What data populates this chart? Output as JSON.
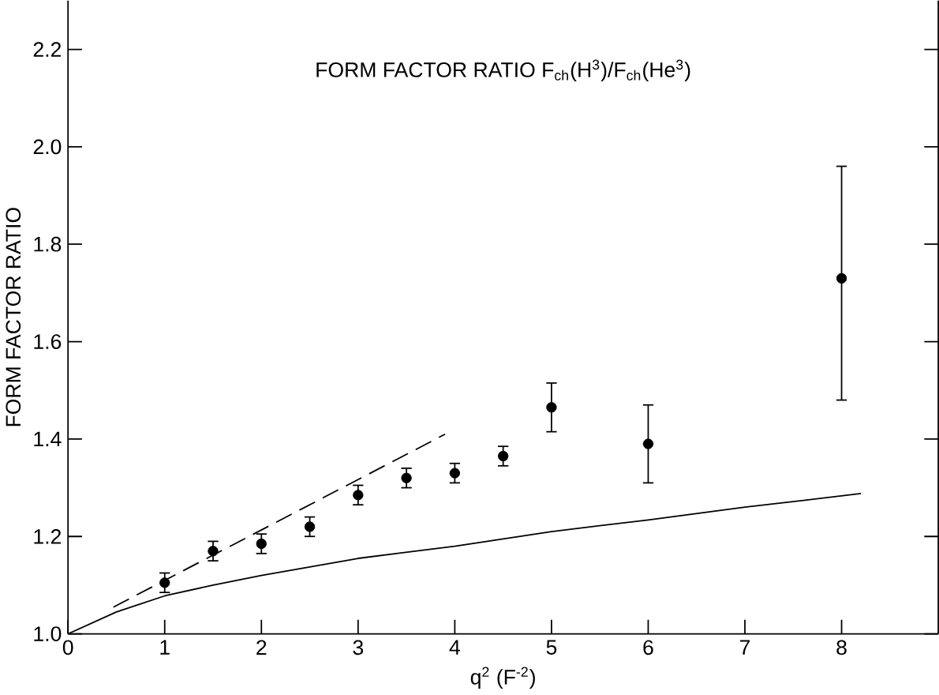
{
  "chart_data": {
    "type": "scatter",
    "title": "FORM FACTOR RATIO   F$_{ch}$(H$^{3}$)/F$_{ch}$(He$^{3}$)",
    "xlabel": "q$^{2}$ (F$^{-2}$)",
    "ylabel": "FORM FACTOR RATIO",
    "xlim": [
      0,
      9
    ],
    "ylim": [
      1.0,
      2.3
    ],
    "xticks": [
      0,
      1,
      2,
      3,
      4,
      5,
      6,
      7,
      8
    ],
    "yticks": [
      {
        "value": 1.0,
        "label": "1.0"
      },
      {
        "value": 1.2,
        "label": "1.2"
      },
      {
        "value": 1.4,
        "label": "1.4"
      },
      {
        "value": 1.6,
        "label": "1.6"
      },
      {
        "value": 1.8,
        "label": "1.8"
      },
      {
        "value": 2.0,
        "label": "2.0"
      },
      {
        "value": 2.2,
        "label": "2.2"
      }
    ],
    "grid": false,
    "series": [
      {
        "color": "#000000",
        "marker": "circle",
        "x": [
          1,
          1.5,
          2,
          2.5,
          3,
          3.5,
          4,
          4.5,
          5,
          6,
          8
        ],
        "values": [
          1.105,
          1.17,
          1.185,
          1.22,
          1.285,
          1.32,
          1.33,
          1.365,
          1.465,
          1.39,
          1.73
        ],
        "errors": [
          0.02,
          0.02,
          0.02,
          0.02,
          0.02,
          0.02,
          0.02,
          0.02,
          0.05,
          0.08,
          [
            1.48,
            1.96
          ]
        ]
      },
      {
        "type": "line",
        "color": "#000000",
        "line_style": "solid",
        "marker": "none",
        "x": [
          0,
          0.5,
          1,
          1.5,
          2,
          3,
          4,
          5,
          6,
          7,
          8.2
        ],
        "values": [
          1.0,
          1.045,
          1.078,
          1.1,
          1.12,
          1.155,
          1.18,
          1.21,
          1.234,
          1.26,
          1.288
        ]
      },
      {
        "type": "line",
        "color": "#000000",
        "line_style": "dashed",
        "marker": "none",
        "x": [
          0.47,
          3.9
        ],
        "values": [
          1.055,
          1.41
        ]
      }
    ]
  }
}
